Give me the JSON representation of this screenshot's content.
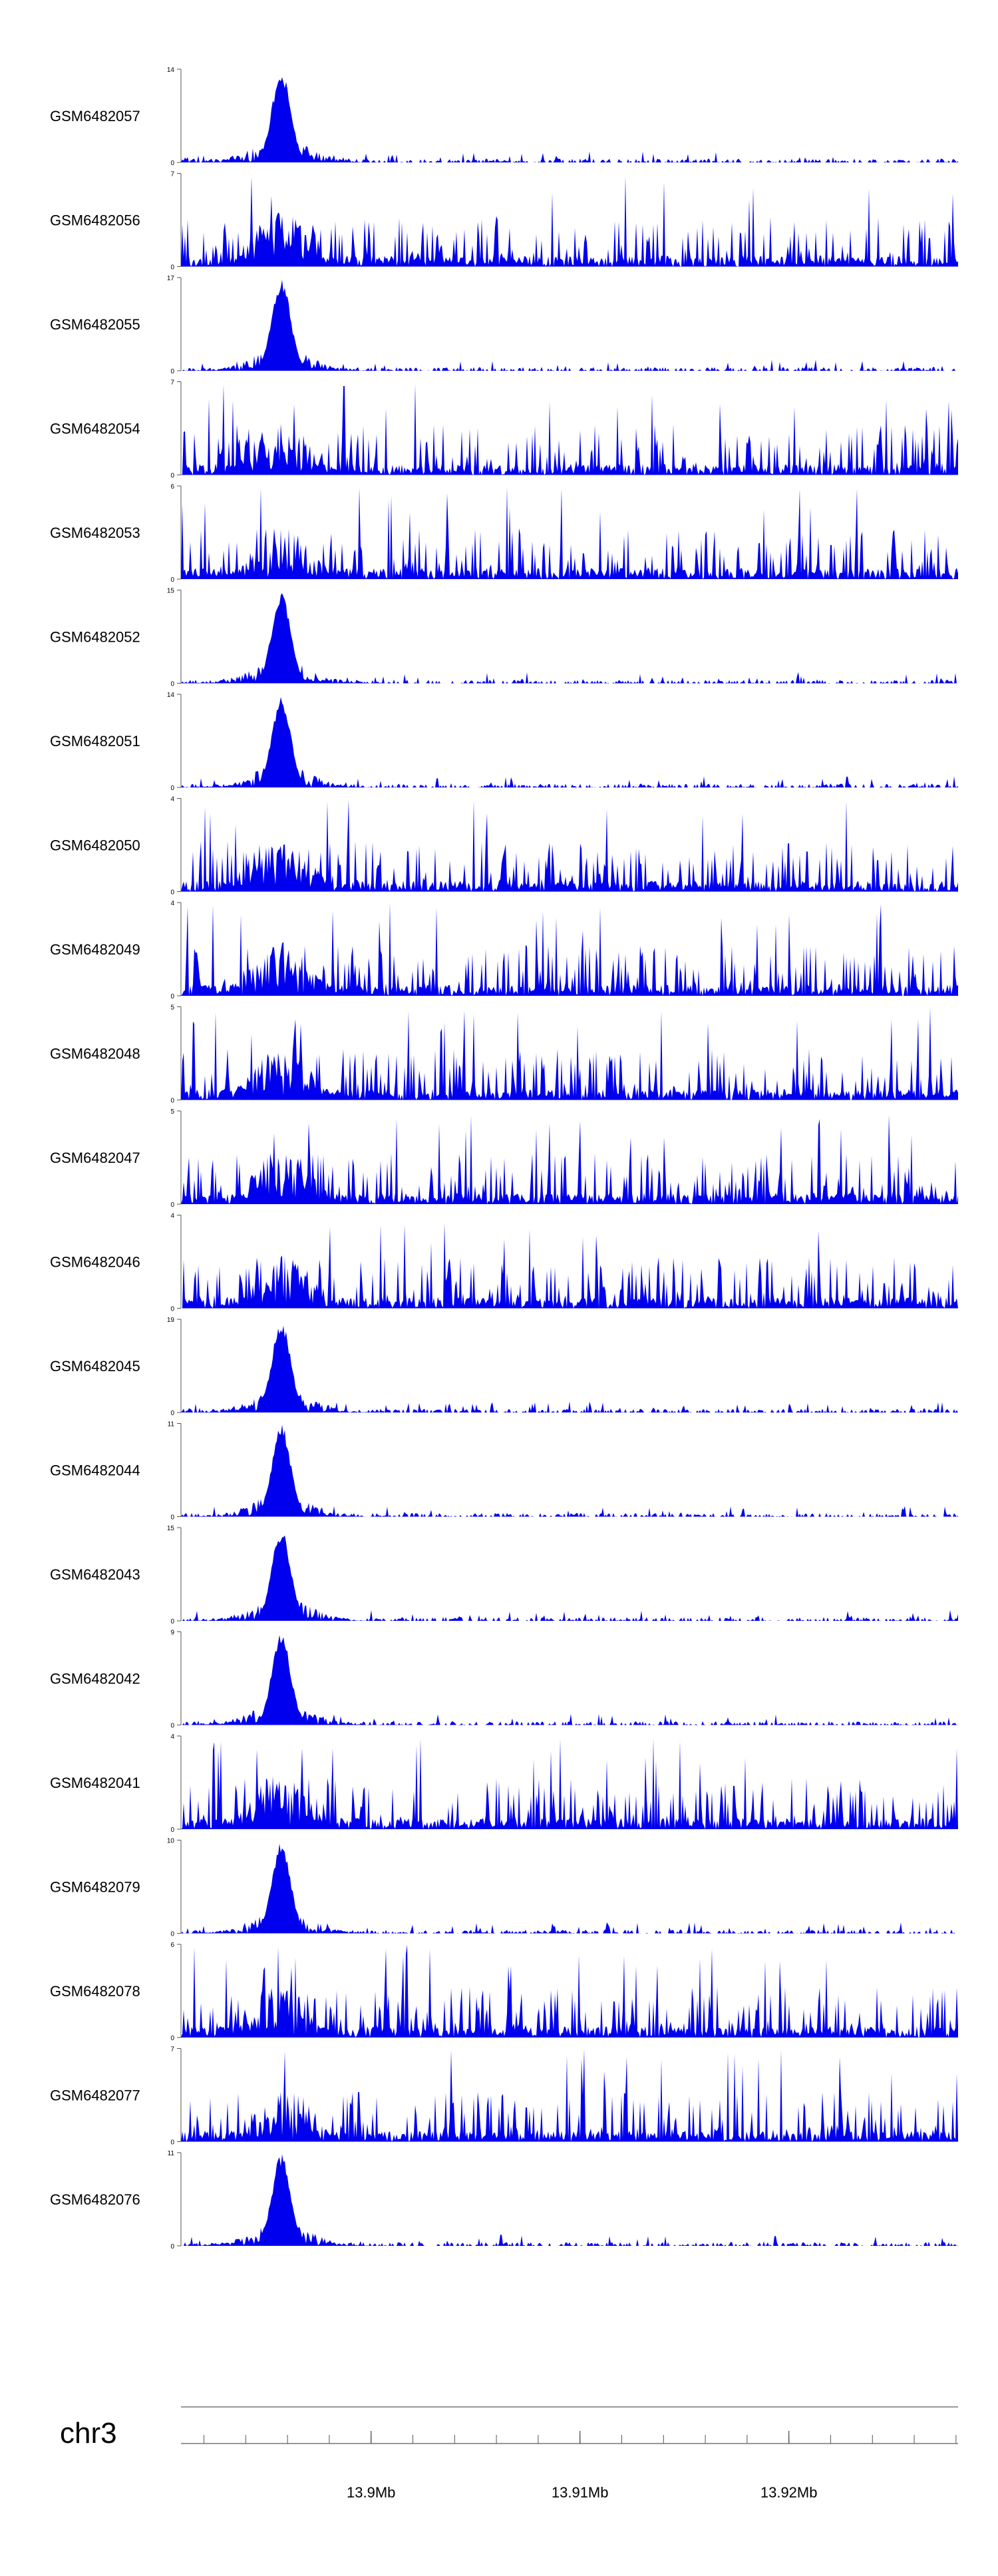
{
  "chart_data": {
    "type": "area",
    "color": "#0000ee",
    "chromosome": "chr3",
    "x_ticks": [
      13.9,
      13.91,
      13.92
    ],
    "x_tick_labels": [
      "13.9Mb",
      "13.91Mb",
      "13.92Mb"
    ],
    "xlim": [
      13.8909,
      13.9281
    ],
    "tracks": [
      {
        "name": "GSM6482057",
        "ymax": 14,
        "ymax_label": "14",
        "ymin_label": "0"
      },
      {
        "name": "GSM6482056",
        "ymax": 7,
        "ymax_label": "7",
        "ymin_label": "0"
      },
      {
        "name": "GSM6482055",
        "ymax": 17,
        "ymax_label": "17",
        "ymin_label": "0"
      },
      {
        "name": "GSM6482054",
        "ymax": 7,
        "ymax_label": "7",
        "ymin_label": "0"
      },
      {
        "name": "GSM6482053",
        "ymax": 6,
        "ymax_label": "6",
        "ymin_label": "0"
      },
      {
        "name": "GSM6482052",
        "ymax": 15,
        "ymax_label": "15",
        "ymin_label": "0"
      },
      {
        "name": "GSM6482051",
        "ymax": 14,
        "ymax_label": "14",
        "ymin_label": "0"
      },
      {
        "name": "GSM6482050",
        "ymax": 4,
        "ymax_label": "4",
        "ymin_label": "0"
      },
      {
        "name": "GSM6482049",
        "ymax": 4,
        "ymax_label": "4",
        "ymin_label": "0"
      },
      {
        "name": "GSM6482048",
        "ymax": 5,
        "ymax_label": "5",
        "ymin_label": "0"
      },
      {
        "name": "GSM6482047",
        "ymax": 5,
        "ymax_label": "5",
        "ymin_label": "0"
      },
      {
        "name": "GSM6482046",
        "ymax": 4,
        "ymax_label": "4",
        "ymin_label": "0"
      },
      {
        "name": "GSM6482045",
        "ymax": 19,
        "ymax_label": "19",
        "ymin_label": "0"
      },
      {
        "name": "GSM6482044",
        "ymax": 11,
        "ymax_label": "11",
        "ymin_label": "0"
      },
      {
        "name": "GSM6482043",
        "ymax": 15,
        "ymax_label": "15",
        "ymin_label": "0"
      },
      {
        "name": "GSM6482042",
        "ymax": 9,
        "ymax_label": "9",
        "ymin_label": "0"
      },
      {
        "name": "GSM6482041",
        "ymax": 4,
        "ymax_label": "4",
        "ymin_label": "0"
      },
      {
        "name": "GSM6482079",
        "ymax": 10,
        "ymax_label": "10",
        "ymin_label": "0"
      },
      {
        "name": "GSM6482078",
        "ymax": 6,
        "ymax_label": "6",
        "ymin_label": "0"
      },
      {
        "name": "GSM6482077",
        "ymax": 7,
        "ymax_label": "7",
        "ymin_label": "0"
      },
      {
        "name": "GSM6482076",
        "ymax": 11,
        "ymax_label": "11",
        "ymin_label": "0"
      }
    ]
  }
}
